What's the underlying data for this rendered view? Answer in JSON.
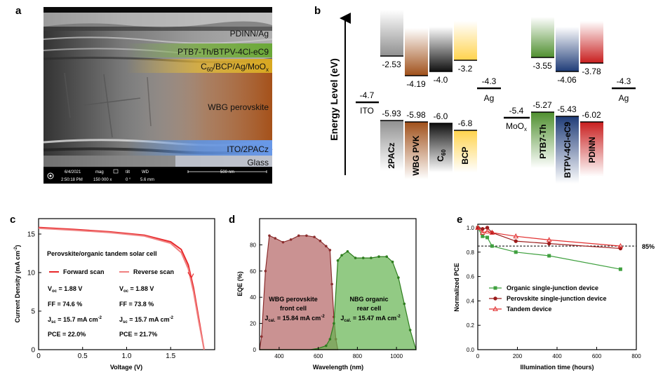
{
  "panels": {
    "a": "a",
    "b": "b",
    "c": "c",
    "d": "d",
    "e": "e"
  },
  "sem": {
    "layers": [
      "PDINN/Ag",
      "PTB7-Th/BTPV-4Cl-eC9",
      "C60/BCP/Ag/MoOx",
      "WBG perovskite",
      "ITO/2PACz",
      "Glass"
    ],
    "info": {
      "date": "6/4/2021",
      "time": "2:50:18 PM",
      "mag_label": "mag",
      "mag_value": "150 000 x",
      "tilt_label": "tilt",
      "tilt_value": "0 °",
      "wd_label": "WD",
      "wd_value": "5.6 mm",
      "scale": "500 nm"
    }
  },
  "energy": {
    "ylabel": "Energy Level (eV)",
    "ito": {
      "name": "ITO",
      "level": "-4.7"
    },
    "ag1": {
      "name": "Ag",
      "level": "-4.3"
    },
    "moox": {
      "name": "MoOx",
      "level": "-5.4"
    },
    "ag2": {
      "name": "Ag",
      "level": "-4.3"
    },
    "materials": [
      {
        "name": "2PACz",
        "lumo": "-2.53",
        "homo": "-5.93"
      },
      {
        "name": "WBG PVK",
        "lumo": "-4.19",
        "homo": "-5.98"
      },
      {
        "name": "C60",
        "lumo": "-4.0",
        "homo": "-6.0"
      },
      {
        "name": "BCP",
        "lumo": "-3.2",
        "homo": "-6.8"
      },
      {
        "name": "PTB7-Th",
        "lumo": "-3.55",
        "homo": "-5.27"
      },
      {
        "name": "BTPV-4Cl-eC9",
        "lumo": "-4.06",
        "homo": "-5.43"
      },
      {
        "name": "PDINN",
        "lumo": "-3.78",
        "homo": "-6.02"
      }
    ]
  },
  "chart_data": [
    {
      "type": "line",
      "title": "Perovskite/organic tandem solar cell",
      "xlabel": "Voltage (V)",
      "ylabel": "Current Density (mA cm-2)",
      "xlim": [
        0,
        2.0
      ],
      "ylim": [
        0,
        17
      ],
      "xticks": [
        "0",
        "0.5",
        "1.0",
        "1.5"
      ],
      "yticks": [
        "0",
        "5",
        "10",
        "15"
      ],
      "series": [
        {
          "name": "Forward scan",
          "x": [
            0,
            0.4,
            0.8,
            1.2,
            1.5,
            1.62,
            1.7,
            1.76,
            1.82,
            1.88
          ],
          "y": [
            15.85,
            15.6,
            15.3,
            14.85,
            14.0,
            13.0,
            11.0,
            8.0,
            4.0,
            0
          ]
        },
        {
          "name": "Reverse scan",
          "x": [
            0,
            0.4,
            0.8,
            1.2,
            1.5,
            1.62,
            1.7,
            1.76,
            1.82,
            1.88
          ],
          "y": [
            15.75,
            15.5,
            15.2,
            14.75,
            13.8,
            12.6,
            10.5,
            7.5,
            3.6,
            0
          ]
        }
      ],
      "params": [
        {
          "voc": "= 1.88 V",
          "ff": "FF = 74.6 %",
          "jsc": "= 15.7 mA cm",
          "pce": "PCE = 22.0%"
        },
        {
          "voc": "= 1.88 V",
          "ff": "FF = 73.8 %",
          "jsc": "= 15.7 mA cm",
          "pce": "PCE = 21.7%"
        }
      ],
      "colors": {
        "forward": "#e8282a",
        "reverse": "#f08080"
      }
    },
    {
      "type": "area",
      "xlabel": "Wavelength (nm)",
      "ylabel": "EQE (%)",
      "xlim": [
        300,
        1100
      ],
      "ylim": [
        0,
        100
      ],
      "xticks": [
        "400",
        "600",
        "800",
        "1000"
      ],
      "yticks": [
        "0",
        "20",
        "40",
        "60",
        "80"
      ],
      "series": [
        {
          "name": "WBG perovskite front cell",
          "jcal": "= 15.84 mA cm",
          "color": "#b46464",
          "x": [
            300,
            310,
            330,
            350,
            380,
            420,
            460,
            500,
            540,
            580,
            610,
            640,
            660,
            670,
            680,
            690,
            700
          ],
          "y": [
            0,
            10,
            60,
            87,
            85,
            82,
            84,
            87,
            87,
            86,
            83,
            79,
            76,
            50,
            25,
            8,
            0
          ]
        },
        {
          "name": "NBG organic rear cell",
          "jcal": "= 15.47 mA cm",
          "color": "#64b450",
          "x": [
            300,
            400,
            500,
            560,
            600,
            640,
            660,
            680,
            700,
            720,
            750,
            790,
            830,
            870,
            910,
            950,
            980,
            1010,
            1040,
            1070,
            1100
          ],
          "y": [
            0,
            0,
            0,
            0,
            1,
            3,
            8,
            20,
            68,
            72,
            75,
            70,
            70,
            70,
            71,
            71,
            67,
            55,
            35,
            15,
            0
          ]
        }
      ],
      "labels": {
        "front_1": "WBG perovskite",
        "front_2": "front cell",
        "rear_1": "NBG organic",
        "rear_2": "rear cell"
      }
    },
    {
      "type": "line",
      "xlabel": "Illumination time (hours)",
      "ylabel": "Normalized PCE",
      "xlim": [
        0,
        800
      ],
      "ylim": [
        0,
        1.0
      ],
      "xticks": [
        "0",
        "200",
        "400",
        "600",
        "800"
      ],
      "yticks": [
        "0.0",
        "0.2",
        "0.4",
        "0.6",
        "0.8",
        "1.0"
      ],
      "reference": {
        "value": 0.85,
        "label": "85%"
      },
      "series": [
        {
          "name": "Organic single-junction device",
          "color": "#3fa03f",
          "marker": "square",
          "x": [
            0,
            24,
            48,
            72,
            192,
            360,
            720
          ],
          "y": [
            1.0,
            0.93,
            0.92,
            0.85,
            0.8,
            0.77,
            0.66
          ]
        },
        {
          "name": "Perovskite single-junction device",
          "color": "#9b1c1c",
          "marker": "circle",
          "x": [
            0,
            24,
            48,
            72,
            192,
            360,
            720
          ],
          "y": [
            1.0,
            0.99,
            1.0,
            0.96,
            0.89,
            0.87,
            0.83
          ]
        },
        {
          "name": "Tandem device",
          "color": "#e23030",
          "marker": "triangle",
          "x": [
            0,
            24,
            48,
            72,
            192,
            360,
            720
          ],
          "y": [
            1.0,
            0.96,
            0.97,
            0.96,
            0.93,
            0.9,
            0.85
          ]
        }
      ]
    }
  ]
}
